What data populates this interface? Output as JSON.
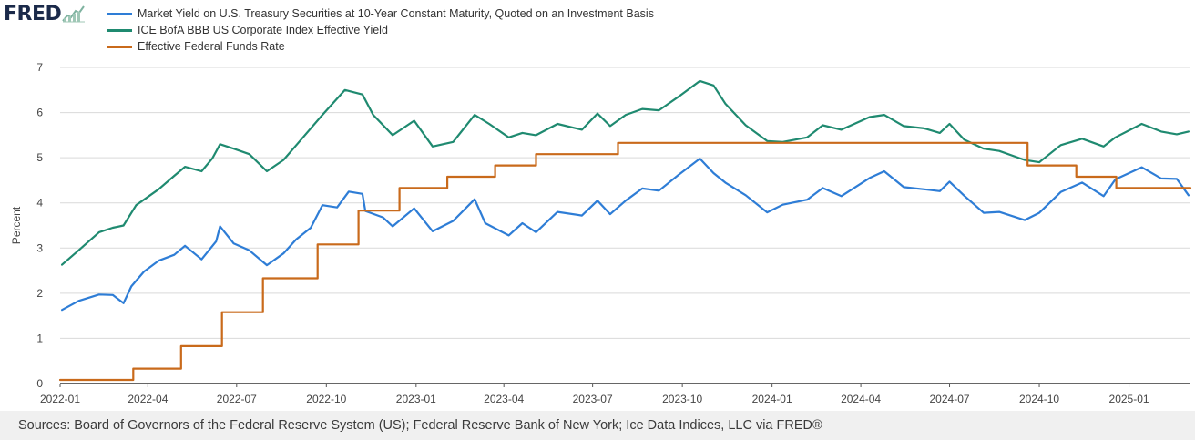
{
  "brand": {
    "name": "FRED",
    "mark_icon": "fred-chart-mark-icon"
  },
  "sources": "Sources: Board of Governors of the Federal Reserve System (US); Federal Reserve Bank of New York; Ice Data Indices, LLC via FRED®",
  "chart_data": {
    "type": "line",
    "title": "",
    "xlabel": "",
    "ylabel": "Percent",
    "xlim": [
      "2022-01-01",
      "2025-03-05"
    ],
    "ylim": [
      0,
      7
    ],
    "yticks": [
      0,
      1,
      2,
      3,
      4,
      5,
      6,
      7
    ],
    "xticks": [
      "2022-01",
      "2022-04",
      "2022-07",
      "2022-10",
      "2023-01",
      "2023-04",
      "2023-07",
      "2023-10",
      "2024-01",
      "2024-04",
      "2024-07",
      "2024-10",
      "2025-01"
    ],
    "grid": "horizontal",
    "legend_position": "top-left",
    "series": [
      {
        "name": "Market Yield on U.S. Treasury Securities at 10-Year Constant Maturity, Quoted on an Investment Basis",
        "color": "#2e7dd6",
        "points": [
          [
            "2022-01-03",
            1.63
          ],
          [
            "2022-01-20",
            1.83
          ],
          [
            "2022-02-10",
            1.97
          ],
          [
            "2022-02-24",
            1.96
          ],
          [
            "2022-03-07",
            1.78
          ],
          [
            "2022-03-15",
            2.15
          ],
          [
            "2022-03-28",
            2.48
          ],
          [
            "2022-04-12",
            2.72
          ],
          [
            "2022-04-28",
            2.85
          ],
          [
            "2022-05-09",
            3.05
          ],
          [
            "2022-05-26",
            2.75
          ],
          [
            "2022-06-10",
            3.15
          ],
          [
            "2022-06-14",
            3.48
          ],
          [
            "2022-06-28",
            3.1
          ],
          [
            "2022-07-14",
            2.95
          ],
          [
            "2022-08-01",
            2.62
          ],
          [
            "2022-08-18",
            2.88
          ],
          [
            "2022-08-31",
            3.19
          ],
          [
            "2022-09-15",
            3.45
          ],
          [
            "2022-09-27",
            3.95
          ],
          [
            "2022-10-12",
            3.9
          ],
          [
            "2022-10-24",
            4.25
          ],
          [
            "2022-11-07",
            4.2
          ],
          [
            "2022-11-10",
            3.82
          ],
          [
            "2022-11-28",
            3.68
          ],
          [
            "2022-12-08",
            3.48
          ],
          [
            "2022-12-30",
            3.88
          ],
          [
            "2023-01-18",
            3.37
          ],
          [
            "2023-02-08",
            3.6
          ],
          [
            "2023-03-02",
            4.08
          ],
          [
            "2023-03-13",
            3.55
          ],
          [
            "2023-04-06",
            3.28
          ],
          [
            "2023-04-20",
            3.55
          ],
          [
            "2023-05-04",
            3.35
          ],
          [
            "2023-05-26",
            3.8
          ],
          [
            "2023-06-20",
            3.72
          ],
          [
            "2023-07-06",
            4.05
          ],
          [
            "2023-07-19",
            3.75
          ],
          [
            "2023-08-04",
            4.05
          ],
          [
            "2023-08-21",
            4.32
          ],
          [
            "2023-09-07",
            4.27
          ],
          [
            "2023-09-27",
            4.62
          ],
          [
            "2023-10-19",
            4.98
          ],
          [
            "2023-11-02",
            4.66
          ],
          [
            "2023-11-14",
            4.45
          ],
          [
            "2023-12-05",
            4.17
          ],
          [
            "2023-12-27",
            3.79
          ],
          [
            "2024-01-12",
            3.96
          ],
          [
            "2024-02-06",
            4.07
          ],
          [
            "2024-02-22",
            4.33
          ],
          [
            "2024-03-12",
            4.15
          ],
          [
            "2024-04-10",
            4.55
          ],
          [
            "2024-04-25",
            4.7
          ],
          [
            "2024-05-15",
            4.35
          ],
          [
            "2024-06-05",
            4.3
          ],
          [
            "2024-06-21",
            4.26
          ],
          [
            "2024-07-01",
            4.47
          ],
          [
            "2024-07-16",
            4.16
          ],
          [
            "2024-08-05",
            3.78
          ],
          [
            "2024-08-21",
            3.8
          ],
          [
            "2024-09-16",
            3.62
          ],
          [
            "2024-10-01",
            3.78
          ],
          [
            "2024-10-23",
            4.24
          ],
          [
            "2024-11-14",
            4.45
          ],
          [
            "2024-12-06",
            4.15
          ],
          [
            "2024-12-18",
            4.52
          ],
          [
            "2025-01-14",
            4.79
          ],
          [
            "2025-02-03",
            4.54
          ],
          [
            "2025-02-19",
            4.53
          ],
          [
            "2025-03-03",
            4.17
          ]
        ]
      },
      {
        "name": "ICE BofA BBB US Corporate Index Effective Yield",
        "color": "#1f8a70",
        "points": [
          [
            "2022-01-03",
            2.63
          ],
          [
            "2022-01-20",
            2.95
          ],
          [
            "2022-02-10",
            3.35
          ],
          [
            "2022-02-24",
            3.45
          ],
          [
            "2022-03-07",
            3.5
          ],
          [
            "2022-03-20",
            3.95
          ],
          [
            "2022-04-12",
            4.3
          ],
          [
            "2022-04-28",
            4.6
          ],
          [
            "2022-05-09",
            4.8
          ],
          [
            "2022-05-26",
            4.7
          ],
          [
            "2022-06-06",
            4.98
          ],
          [
            "2022-06-14",
            5.3
          ],
          [
            "2022-06-28",
            5.2
          ],
          [
            "2022-07-14",
            5.08
          ],
          [
            "2022-08-01",
            4.7
          ],
          [
            "2022-08-18",
            4.95
          ],
          [
            "2022-09-01",
            5.3
          ],
          [
            "2022-09-27",
            5.95
          ],
          [
            "2022-10-20",
            6.5
          ],
          [
            "2022-11-07",
            6.4
          ],
          [
            "2022-11-18",
            5.95
          ],
          [
            "2022-12-08",
            5.5
          ],
          [
            "2022-12-30",
            5.82
          ],
          [
            "2023-01-18",
            5.25
          ],
          [
            "2023-02-08",
            5.35
          ],
          [
            "2023-03-02",
            5.95
          ],
          [
            "2023-03-17",
            5.75
          ],
          [
            "2023-04-06",
            5.45
          ],
          [
            "2023-04-20",
            5.55
          ],
          [
            "2023-05-04",
            5.5
          ],
          [
            "2023-05-26",
            5.75
          ],
          [
            "2023-06-20",
            5.62
          ],
          [
            "2023-07-06",
            5.98
          ],
          [
            "2023-07-19",
            5.7
          ],
          [
            "2023-08-04",
            5.95
          ],
          [
            "2023-08-21",
            6.08
          ],
          [
            "2023-09-07",
            6.05
          ],
          [
            "2023-09-27",
            6.35
          ],
          [
            "2023-10-19",
            6.7
          ],
          [
            "2023-11-02",
            6.6
          ],
          [
            "2023-11-14",
            6.2
          ],
          [
            "2023-12-05",
            5.72
          ],
          [
            "2023-12-27",
            5.37
          ],
          [
            "2024-01-12",
            5.35
          ],
          [
            "2024-02-06",
            5.45
          ],
          [
            "2024-02-22",
            5.72
          ],
          [
            "2024-03-12",
            5.62
          ],
          [
            "2024-04-10",
            5.9
          ],
          [
            "2024-04-25",
            5.95
          ],
          [
            "2024-05-15",
            5.7
          ],
          [
            "2024-06-05",
            5.65
          ],
          [
            "2024-06-21",
            5.55
          ],
          [
            "2024-07-01",
            5.75
          ],
          [
            "2024-07-16",
            5.4
          ],
          [
            "2024-08-05",
            5.2
          ],
          [
            "2024-08-21",
            5.15
          ],
          [
            "2024-09-16",
            4.95
          ],
          [
            "2024-10-01",
            4.9
          ],
          [
            "2024-10-23",
            5.28
          ],
          [
            "2024-11-14",
            5.42
          ],
          [
            "2024-12-06",
            5.25
          ],
          [
            "2024-12-18",
            5.45
          ],
          [
            "2025-01-14",
            5.75
          ],
          [
            "2025-02-03",
            5.58
          ],
          [
            "2025-02-19",
            5.52
          ],
          [
            "2025-03-03",
            5.58
          ]
        ]
      },
      {
        "name": "Effective Federal Funds Rate",
        "color": "#c96a1b",
        "step": true,
        "points": [
          [
            "2022-01-01",
            0.08
          ],
          [
            "2022-03-17",
            0.33
          ],
          [
            "2022-05-05",
            0.83
          ],
          [
            "2022-06-16",
            1.58
          ],
          [
            "2022-07-28",
            2.33
          ],
          [
            "2022-09-22",
            3.08
          ],
          [
            "2022-11-03",
            3.83
          ],
          [
            "2022-12-15",
            4.33
          ],
          [
            "2023-02-02",
            4.58
          ],
          [
            "2023-03-23",
            4.83
          ],
          [
            "2023-05-04",
            5.08
          ],
          [
            "2023-07-27",
            5.33
          ],
          [
            "2024-09-19",
            4.83
          ],
          [
            "2024-11-08",
            4.58
          ],
          [
            "2024-12-19",
            4.33
          ],
          [
            "2025-03-05",
            4.33
          ]
        ]
      }
    ]
  }
}
